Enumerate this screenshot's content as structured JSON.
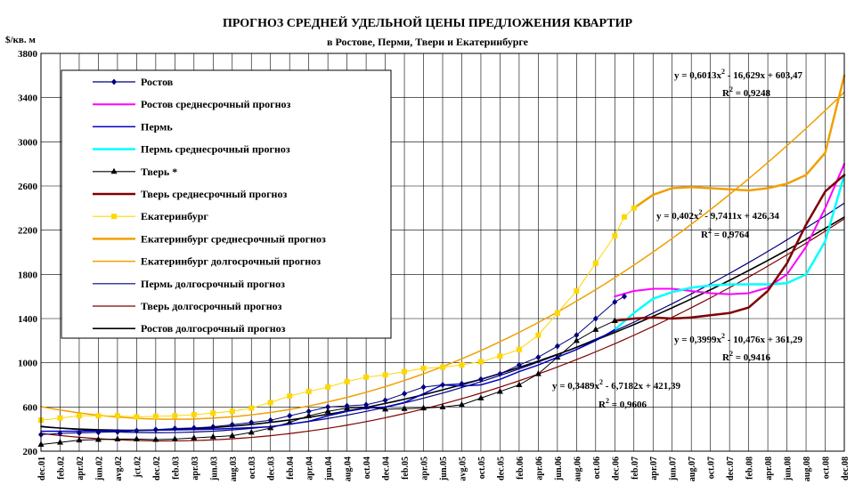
{
  "chart_data": {
    "type": "line",
    "title": "ПРОГНОЗ СРЕДНЕЙ УДЕЛЬНОЙ ЦЕНЫ ПРЕДЛОЖЕНИЯ КВАРТИР",
    "subtitle": "в Ростове, Перми, Твери и Екатеринбурге",
    "ylabel": "$/кв. м",
    "ylim": [
      200,
      3800
    ],
    "yticks": [
      200,
      600,
      1000,
      1400,
      1800,
      2200,
      2600,
      3000,
      3400,
      3800
    ],
    "xticks": [
      "dec.01",
      "feb.02",
      "apr.02",
      "jun.02",
      "avg.02",
      "jct.02",
      "dec.02",
      "feb.03",
      "apr.03",
      "jun.03",
      "aug.03",
      "oct.03",
      "dec.03",
      "feb.04",
      "apr.04",
      "jun.04",
      "aug.04",
      "oct.04",
      "dec.04",
      "feb.05",
      "apr.05",
      "jun.05",
      "avg.05",
      "oct.05",
      "dec.05",
      "feb.06",
      "apr.06",
      "jun.06",
      "aug.06",
      "oct.06",
      "dec.06",
      "feb.07",
      "apr.07",
      "jun.07",
      "aug.07",
      "oct.07",
      "dec.07",
      "feb.08",
      "apr.08",
      "jun.08",
      "aug.08",
      "oct.08",
      "dec.08"
    ],
    "xlim": [
      0,
      84
    ],
    "grid": true,
    "legend_position": "top-left",
    "series": [
      {
        "name": "Ростов",
        "color": "#000080",
        "marker": "diamond",
        "width": 1,
        "x": [
          0,
          2,
          4,
          6,
          8,
          10,
          12,
          14,
          16,
          18,
          20,
          22,
          24,
          26,
          28,
          30,
          32,
          34,
          36,
          38,
          40,
          42,
          44,
          46,
          48,
          50,
          52,
          54,
          56,
          58,
          60,
          61
        ],
        "y": [
          350,
          360,
          365,
          370,
          375,
          385,
          395,
          405,
          410,
          420,
          440,
          460,
          480,
          520,
          560,
          600,
          610,
          620,
          660,
          720,
          780,
          800,
          810,
          850,
          900,
          980,
          1050,
          1150,
          1250,
          1400,
          1550,
          1600
        ]
      },
      {
        "name": "Ростов среднесрочный прогноз",
        "color": "#FF00FF",
        "width": 2,
        "x": [
          60,
          62,
          64,
          66,
          68,
          70,
          72,
          74,
          76,
          78,
          80,
          82,
          84
        ],
        "y": [
          1600,
          1650,
          1670,
          1670,
          1650,
          1630,
          1620,
          1630,
          1680,
          1800,
          2050,
          2400,
          2800
        ]
      },
      {
        "name": "Пермь",
        "color": "#0000C0",
        "width": 1.5,
        "x": [
          0,
          4,
          8,
          12,
          16,
          20,
          24,
          28,
          30,
          32,
          34,
          36,
          38,
          40,
          42,
          44,
          46,
          48,
          50,
          52,
          54,
          56,
          58,
          60
        ],
        "y": [
          380,
          380,
          385,
          390,
          395,
          405,
          420,
          470,
          520,
          560,
          590,
          600,
          640,
          720,
          800,
          790,
          800,
          850,
          920,
          980,
          1050,
          1120,
          1200,
          1300
        ]
      },
      {
        "name": "Пермь среднесрочный прогноз",
        "color": "#00FFFF",
        "width": 2.5,
        "x": [
          60,
          62,
          64,
          66,
          68,
          70,
          72,
          74,
          76,
          78,
          80,
          82,
          84
        ],
        "y": [
          1300,
          1450,
          1580,
          1640,
          1680,
          1700,
          1710,
          1710,
          1710,
          1720,
          1800,
          2100,
          2700
        ]
      },
      {
        "name": "Тверь *",
        "color": "#000000",
        "marker": "triangle",
        "width": 1,
        "x": [
          0,
          2,
          4,
          6,
          8,
          10,
          12,
          14,
          16,
          18,
          20,
          22,
          24,
          26,
          28,
          30,
          32,
          34,
          36,
          38,
          40,
          42,
          44,
          46,
          48,
          50,
          52,
          54,
          56,
          58,
          60
        ],
        "y": [
          260,
          280,
          300,
          305,
          310,
          310,
          305,
          310,
          320,
          330,
          340,
          370,
          410,
          460,
          520,
          560,
          590,
          600,
          580,
          585,
          590,
          600,
          620,
          680,
          740,
          800,
          900,
          1050,
          1200,
          1300,
          1380
        ]
      },
      {
        "name": "Тверь среднесрочный прогноз",
        "color": "#800000",
        "width": 2.5,
        "x": [
          60,
          62,
          64,
          66,
          68,
          70,
          72,
          74,
          76,
          78,
          80,
          82,
          84
        ],
        "y": [
          1380,
          1400,
          1410,
          1400,
          1410,
          1430,
          1450,
          1500,
          1650,
          1900,
          2250,
          2550,
          2700
        ]
      },
      {
        "name": "Екатеринбург",
        "color": "#FFD700",
        "marker": "square",
        "width": 1,
        "x": [
          0,
          2,
          4,
          6,
          8,
          10,
          12,
          14,
          16,
          18,
          20,
          22,
          24,
          26,
          28,
          30,
          32,
          34,
          36,
          38,
          40,
          42,
          44,
          46,
          48,
          50,
          52,
          54,
          56,
          58,
          60,
          61,
          62
        ],
        "y": [
          480,
          500,
          520,
          520,
          520,
          510,
          515,
          520,
          530,
          545,
          560,
          590,
          640,
          700,
          740,
          780,
          830,
          870,
          890,
          920,
          950,
          960,
          980,
          1010,
          1060,
          1120,
          1250,
          1450,
          1650,
          1900,
          2150,
          2320,
          2400
        ]
      },
      {
        "name": "Екатеринбург среднесрочный прогноз",
        "color": "#F0A000",
        "width": 2.5,
        "x": [
          62,
          64,
          66,
          68,
          70,
          72,
          74,
          76,
          78,
          80,
          82,
          84
        ],
        "y": [
          2400,
          2520,
          2580,
          2590,
          2580,
          2570,
          2560,
          2580,
          2620,
          2700,
          2900,
          3600
        ]
      },
      {
        "name": "Екатеринбург долгосрочный прогноз",
        "color": "#F0A000",
        "width": 1.5,
        "fn": [
          0.6013,
          -16.629,
          603.47
        ]
      },
      {
        "name": "Пермь долгосрочный прогноз",
        "color": "#000080",
        "width": 1.2,
        "fn": [
          0.402,
          -9.7411,
          426.34
        ]
      },
      {
        "name": "Тверь долгосрочный прогноз",
        "color": "#800000",
        "width": 1.2,
        "fn": [
          0.3999,
          -10.476,
          361.29
        ]
      },
      {
        "name": "Ростов долгосрочный прогноз",
        "color": "#000000",
        "width": 1.6,
        "fn": [
          0.3489,
          -6.7182,
          421.39
        ]
      }
    ],
    "annotations": [
      {
        "eq": "y = 0,6013x",
        "eq2": " - 16,629x + 603,47",
        "r": "R",
        "r2": " = 0,9248"
      },
      {
        "eq": "y = 0,402x",
        "eq2": " - 9,7411x + 426,34",
        "r": "R",
        "r2": " = 0,9764"
      },
      {
        "eq": "y = 0,3999x",
        "eq2": " - 10,476x + 361,29",
        "r": "R",
        "r2": " = 0,9416"
      },
      {
        "eq": "y = 0,3489x",
        "eq2": " - 6,7182x + 421,39",
        "r": "R",
        "r2": " = 0,9606"
      }
    ]
  }
}
